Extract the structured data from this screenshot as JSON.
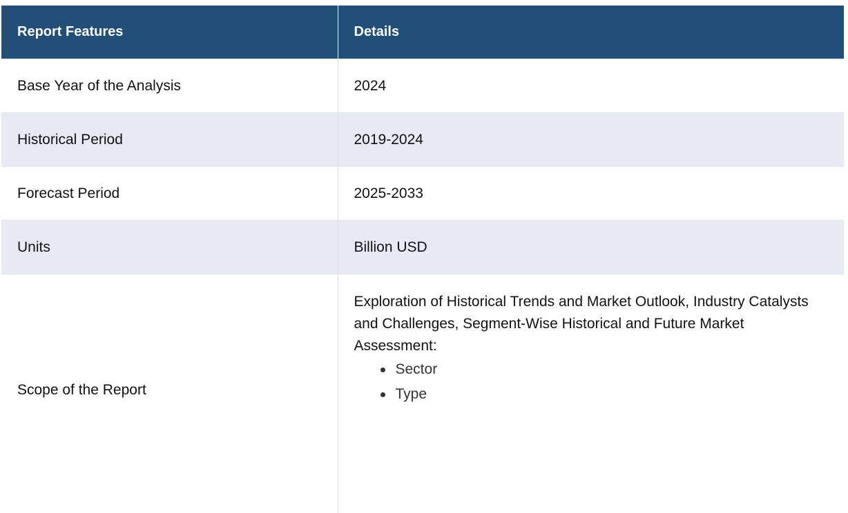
{
  "table": {
    "headers": {
      "col1": "Report Features",
      "col2": "Details"
    },
    "rows": [
      {
        "feature": "Base Year of the Analysis",
        "detail": "2024"
      },
      {
        "feature": "Historical Period",
        "detail": "2019-2024"
      },
      {
        "feature": "Forecast Period",
        "detail": "2025-2033"
      },
      {
        "feature": "Units",
        "detail": "Billion USD"
      }
    ],
    "scope": {
      "feature": "Scope of the Report",
      "intro": "Exploration of Historical Trends and Market Outlook, Industry Catalysts and Challenges, Segment-Wise Historical and Future Market Assessment:",
      "items": [
        "Sector",
        "Type"
      ]
    }
  },
  "colors": {
    "header_bg": "#214f78",
    "header_text": "#ffffff",
    "alt_row_bg": "#e7e9f5"
  }
}
